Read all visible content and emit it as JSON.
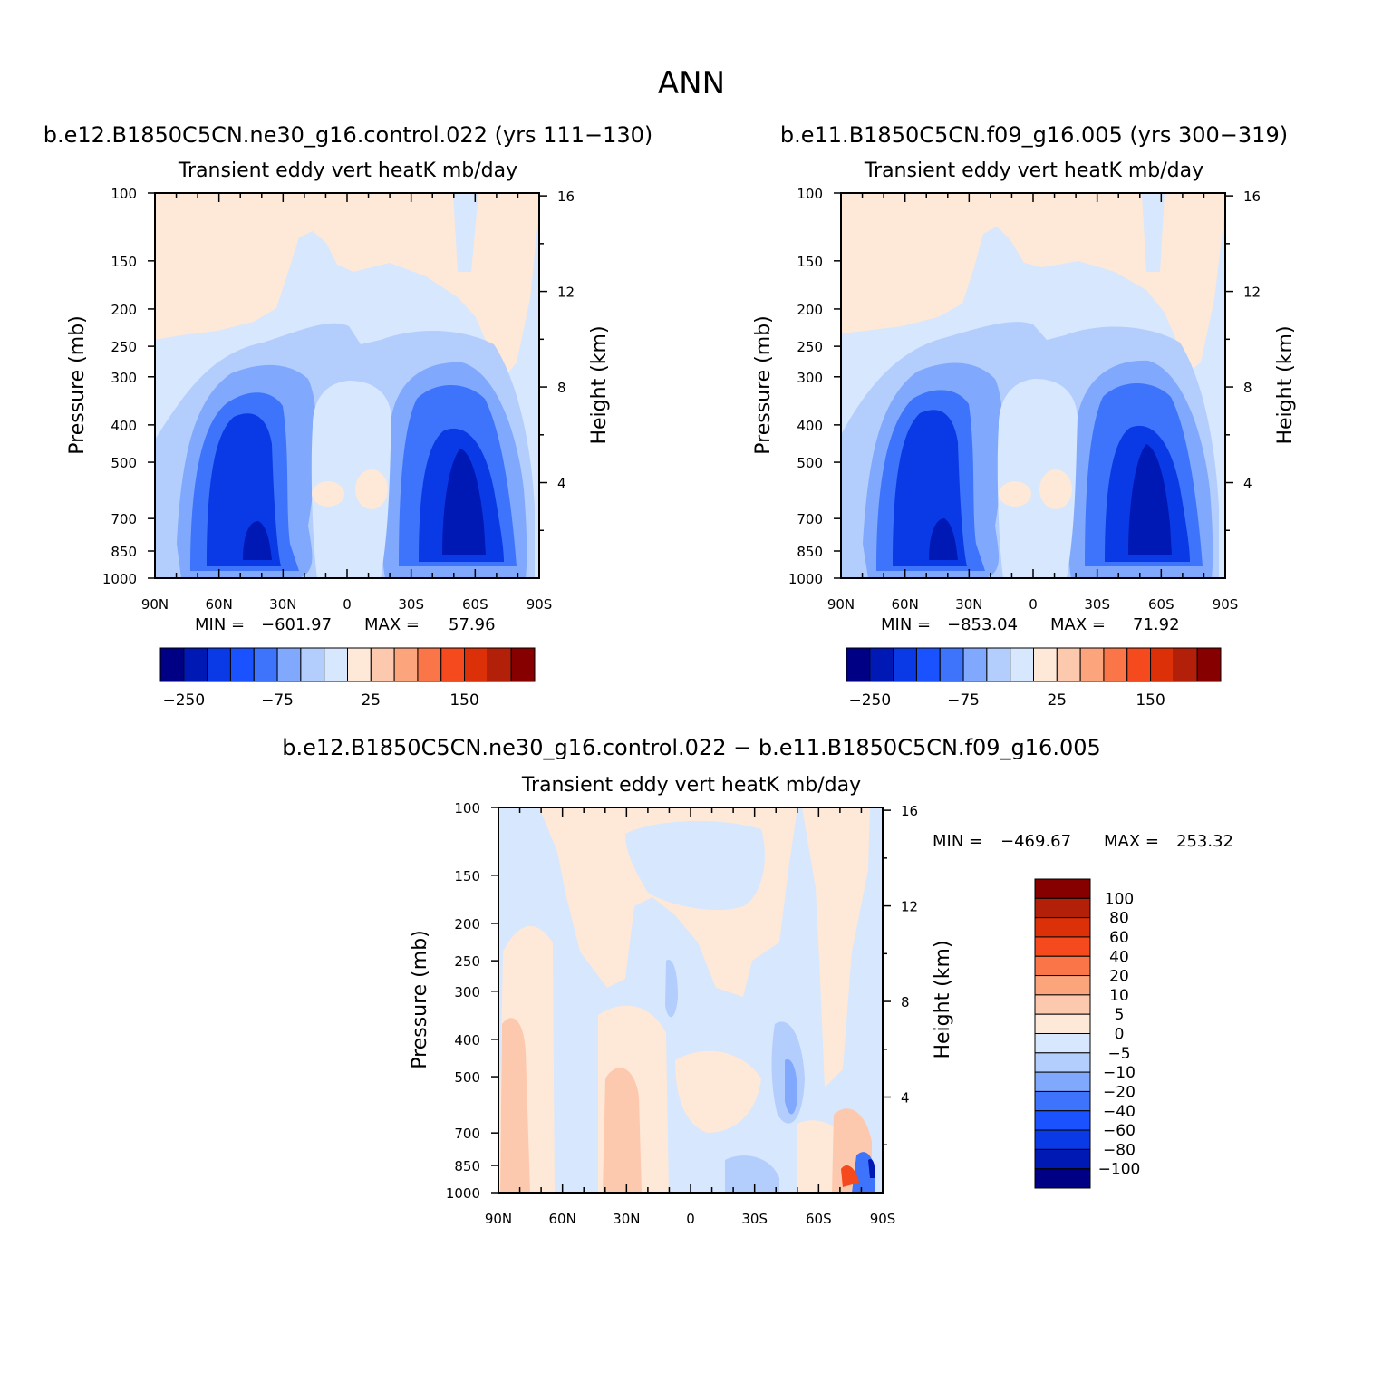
{
  "figure": {
    "season_title": "ANN",
    "palette": {
      "dark_navy": "#000085",
      "navy": "#0019b5",
      "blue": "#0a3ae6",
      "bright_blue": "#1a52ff",
      "mid_blue": "#3d74fb",
      "light_blue": "#80a8fc",
      "pale_blue": "#b3cdfd",
      "faint_blue": "#d6e7fe",
      "faint_orange": "#fee8d8",
      "peach": "#fdc9ae",
      "salmon": "#fca47c",
      "orange": "#fa7648",
      "red_orange": "#f44a1d",
      "red": "#dc3008",
      "dark_red": "#b3200a",
      "maroon": "#870000"
    }
  },
  "chart_data": [
    {
      "type": "heatmap",
      "case_title": "b.e12.B1850C5CN.ne30_g16.control.022 (yrs 111-130)",
      "title": "Transient eddy vert heatK mb/day",
      "ylabel": "Pressure (mb)",
      "y2label": "Height (km)",
      "x_ticks": [
        "90N",
        "60N",
        "30N",
        "0",
        "30S",
        "60S",
        "90S"
      ],
      "x_range": [
        90,
        -90
      ],
      "y_ticks": [
        "100",
        "150",
        "200",
        "250",
        "300",
        "400",
        "500",
        "700",
        "850",
        "1000"
      ],
      "y_range": [
        100,
        1000
      ],
      "y2_ticks": [
        "16",
        "12",
        "8",
        "4"
      ],
      "stats": {
        "min_label": "MIN =",
        "min": "-601.97",
        "max_label": "MAX =",
        "max": "57.96"
      },
      "colorbar": {
        "levels": [
          -250,
          -200,
          -150,
          -100,
          -75,
          -50,
          -25,
          0,
          25,
          50,
          75,
          100,
          150,
          200,
          250
        ],
        "labels": [
          "-250",
          "-75",
          "25",
          "150"
        ]
      }
    },
    {
      "type": "heatmap",
      "case_title": "b.e11.B1850C5CN.f09_g16.005 (yrs 300-319)",
      "title": "Transient eddy vert heatK mb/day",
      "ylabel": "Pressure (mb)",
      "y2label": "Height (km)",
      "x_ticks": [
        "90N",
        "60N",
        "30N",
        "0",
        "30S",
        "60S",
        "90S"
      ],
      "x_range": [
        90,
        -90
      ],
      "y_ticks": [
        "100",
        "150",
        "200",
        "250",
        "300",
        "400",
        "500",
        "700",
        "850",
        "1000"
      ],
      "y_range": [
        100,
        1000
      ],
      "y2_ticks": [
        "16",
        "12",
        "8",
        "4"
      ],
      "stats": {
        "min_label": "MIN =",
        "min": "-853.04",
        "max_label": "MAX =",
        "max": "71.92"
      },
      "colorbar": {
        "levels": [
          -250,
          -200,
          -150,
          -100,
          -75,
          -50,
          -25,
          0,
          25,
          50,
          75,
          100,
          150,
          200,
          250
        ],
        "labels": [
          "-250",
          "-75",
          "25",
          "150"
        ]
      }
    },
    {
      "type": "heatmap",
      "case_title": "b.e12.B1850C5CN.ne30_g16.control.022 - b.e11.B1850C5CN.f09_g16.005",
      "title": "Transient eddy vert heatK mb/day",
      "ylabel": "Pressure (mb)",
      "y2label": "Height (km)",
      "x_ticks": [
        "90N",
        "60N",
        "30N",
        "0",
        "30S",
        "60S",
        "90S"
      ],
      "x_range": [
        90,
        -90
      ],
      "y_ticks": [
        "100",
        "150",
        "200",
        "250",
        "300",
        "400",
        "500",
        "700",
        "850",
        "1000"
      ],
      "y_range": [
        100,
        1000
      ],
      "y2_ticks": [
        "16",
        "12",
        "8",
        "4"
      ],
      "stats": {
        "min_label": "MIN =",
        "min": "-469.67",
        "max_label": "MAX =",
        "max": "253.32"
      },
      "colorbar": {
        "levels": [
          100,
          80,
          60,
          40,
          20,
          10,
          5,
          0,
          -5,
          -10,
          -20,
          -40,
          -60,
          -80,
          -100
        ],
        "labels": [
          "100",
          "80",
          "60",
          "40",
          "20",
          "10",
          "5",
          "0",
          "-5",
          "-10",
          "-20",
          "-40",
          "-60",
          "-80",
          "-100"
        ]
      }
    }
  ]
}
